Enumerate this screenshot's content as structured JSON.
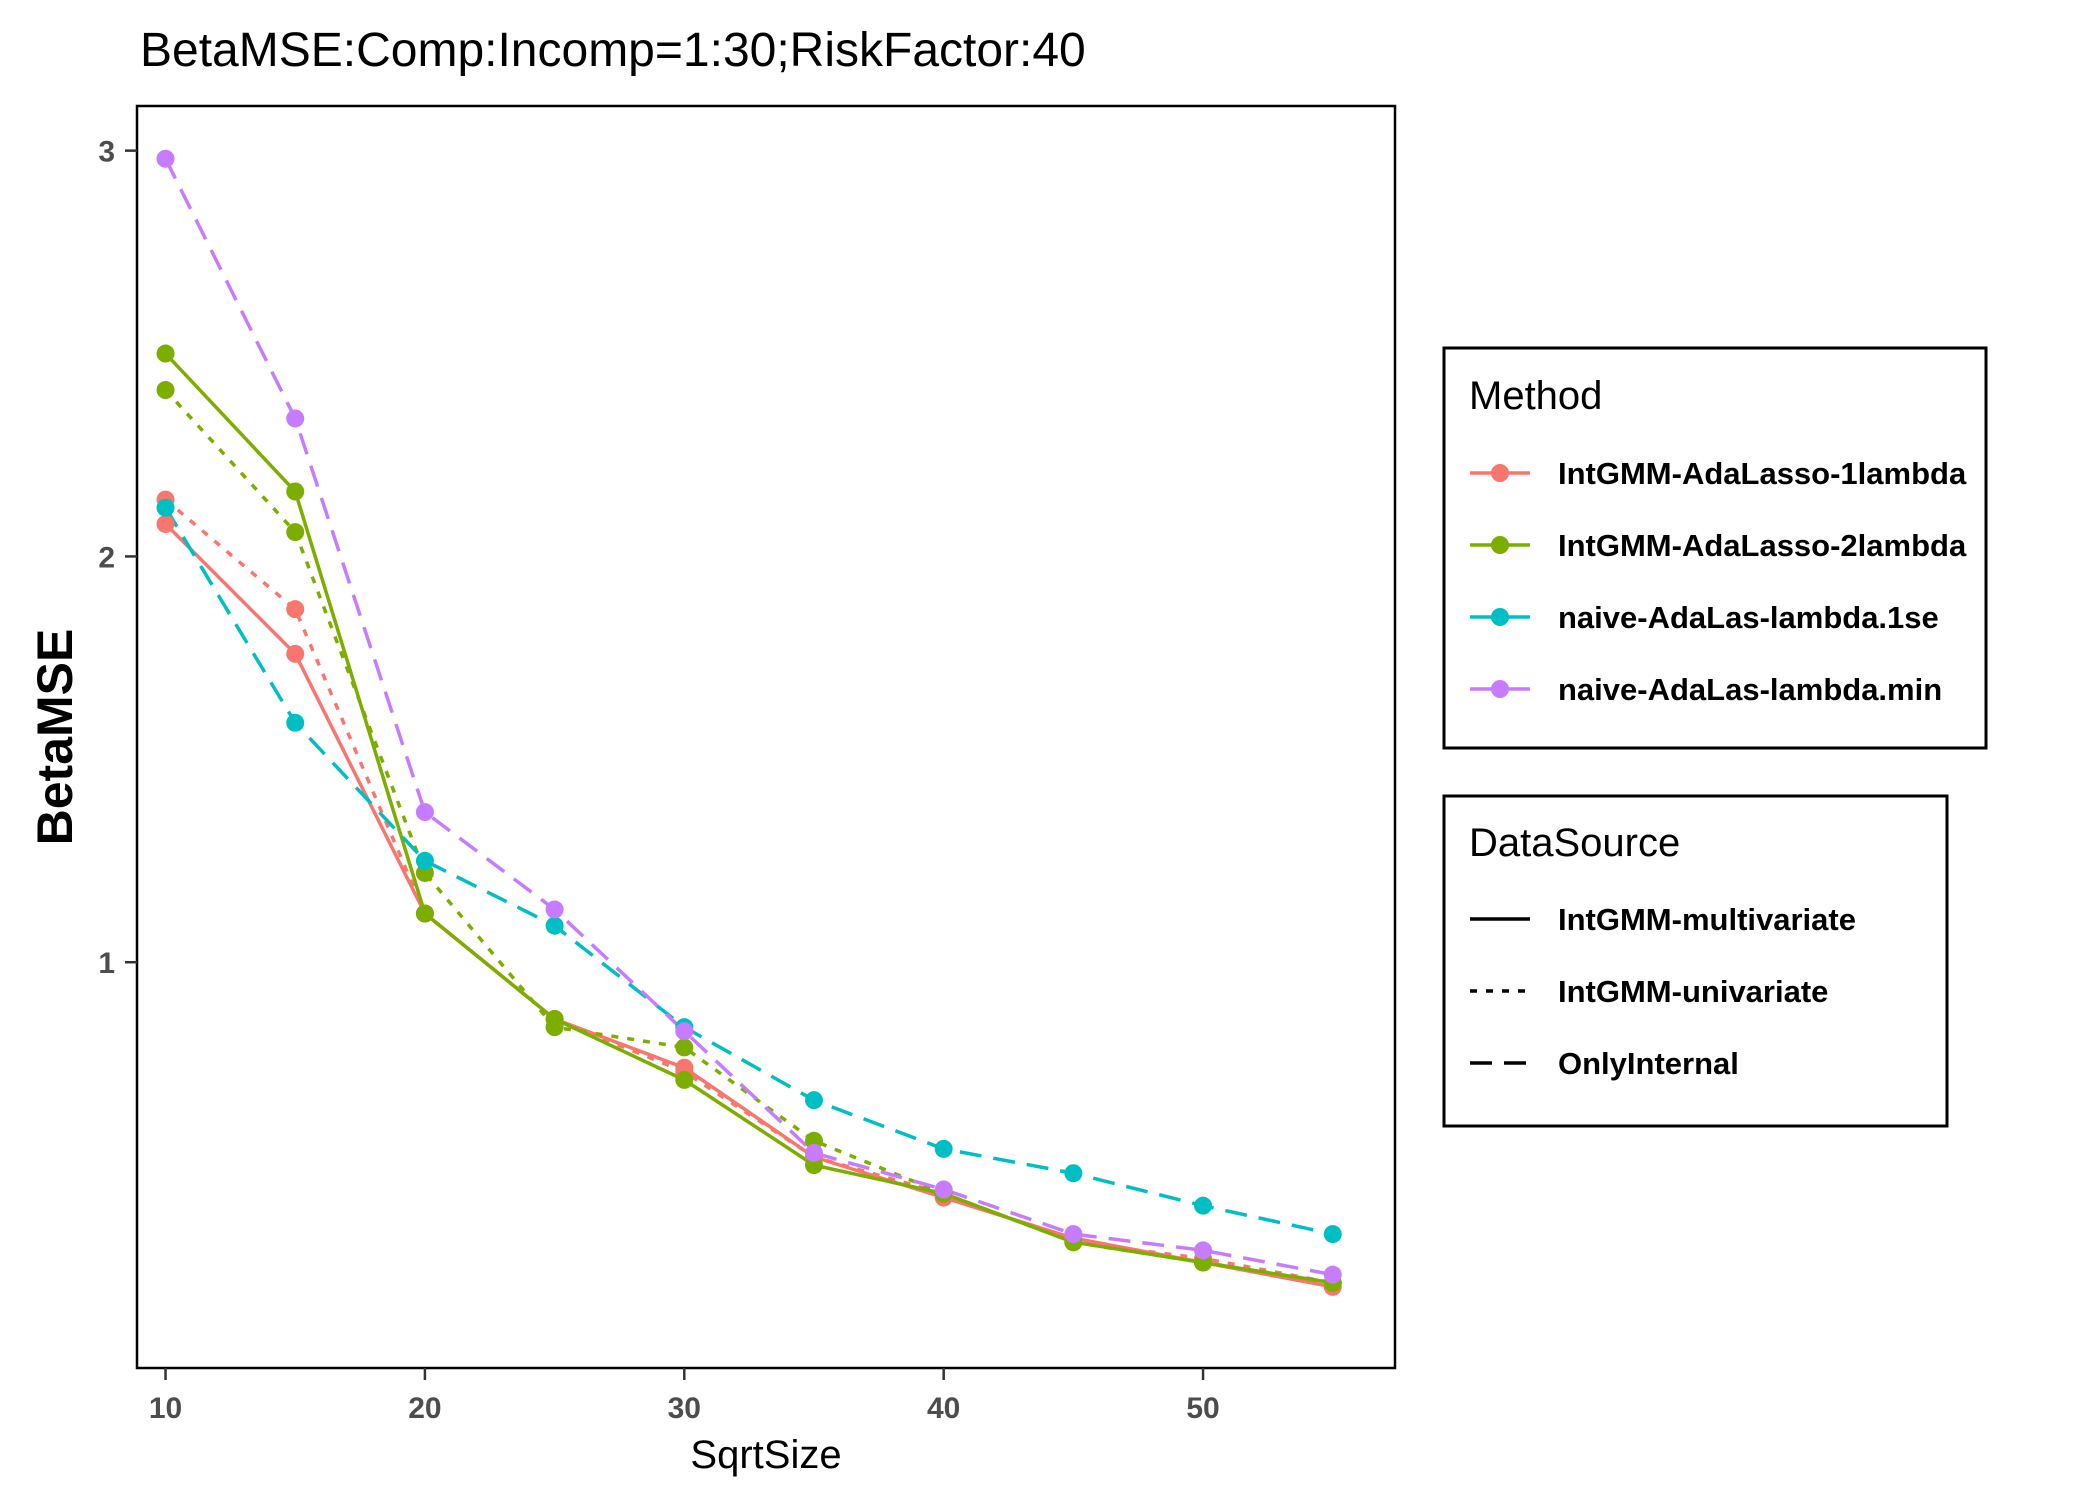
{
  "chart_data": {
    "type": "line",
    "title": "BetaMSE:Comp:Incomp=1:30;RiskFactor:40",
    "xlabel": "SqrtSize",
    "ylabel": "BetaMSE",
    "x": [
      10,
      15,
      20,
      25,
      30,
      35,
      40,
      45,
      50,
      55
    ],
    "xlim": [
      8.9,
      57.4
    ],
    "ylim": [
      0.0,
      3.11
    ],
    "x_ticks": [
      10,
      20,
      30,
      40,
      50
    ],
    "y_ticks": [
      1,
      2,
      3
    ],
    "grid": false,
    "legend_placement": "right",
    "legends": {
      "method": {
        "title": "Method",
        "entries": [
          {
            "label": "IntGMM-AdaLasso-1lambda",
            "color": "#F8766D"
          },
          {
            "label": "IntGMM-AdaLasso-2lambda",
            "color": "#7CAE00"
          },
          {
            "label": "naive-AdaLas-lambda.1se",
            "color": "#00BFC4"
          },
          {
            "label": "naive-AdaLas-lambda.min",
            "color": "#C77CFF"
          }
        ]
      },
      "datasource": {
        "title": "DataSource",
        "entries": [
          {
            "label": "IntGMM-multivariate",
            "dash": "solid"
          },
          {
            "label": "IntGMM-univariate",
            "dash": "dotted"
          },
          {
            "label": "OnlyInternal",
            "dash": "dashed"
          }
        ]
      }
    },
    "series": [
      {
        "method": "IntGMM-AdaLasso-1lambda",
        "datasource": "IntGMM-multivariate",
        "color": "#F8766D",
        "dash": "solid",
        "values": [
          2.08,
          1.76,
          1.12,
          0.86,
          0.74,
          0.52,
          0.42,
          0.32,
          0.26,
          0.2
        ]
      },
      {
        "method": "IntGMM-AdaLasso-1lambda",
        "datasource": "IntGMM-univariate",
        "color": "#F8766D",
        "dash": "dotted",
        "values": [
          2.14,
          1.87,
          1.12,
          0.86,
          0.73,
          0.52,
          0.43,
          0.31,
          0.27,
          0.21
        ]
      },
      {
        "method": "IntGMM-AdaLasso-2lambda",
        "datasource": "IntGMM-multivariate",
        "color": "#7CAE00",
        "dash": "solid",
        "values": [
          2.5,
          2.16,
          1.12,
          0.86,
          0.71,
          0.5,
          0.43,
          0.31,
          0.26,
          0.21
        ]
      },
      {
        "method": "IntGMM-AdaLasso-2lambda",
        "datasource": "IntGMM-univariate",
        "color": "#7CAE00",
        "dash": "dotted",
        "values": [
          2.41,
          2.06,
          1.22,
          0.84,
          0.79,
          0.56,
          0.43,
          0.31,
          0.26,
          0.21
        ]
      },
      {
        "method": "naive-AdaLas-lambda.1se",
        "datasource": "OnlyInternal",
        "color": "#00BFC4",
        "dash": "dashed",
        "values": [
          2.12,
          1.59,
          1.25,
          1.09,
          0.84,
          0.66,
          0.54,
          0.48,
          0.4,
          0.33
        ]
      },
      {
        "method": "naive-AdaLas-lambda.min",
        "datasource": "OnlyInternal",
        "color": "#C77CFF",
        "dash": "dashed",
        "values": [
          2.98,
          2.34,
          1.37,
          1.13,
          0.83,
          0.53,
          0.44,
          0.33,
          0.29,
          0.23
        ]
      }
    ]
  }
}
